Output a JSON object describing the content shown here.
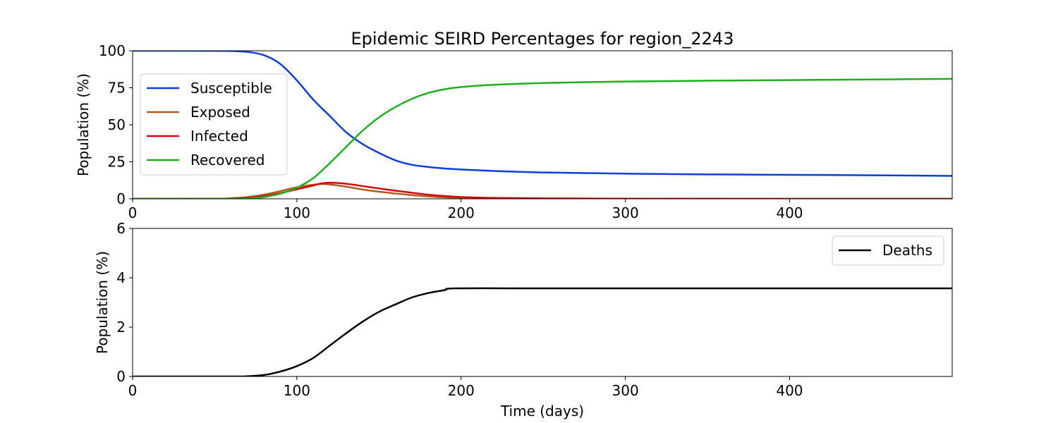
{
  "chart_data": [
    {
      "type": "line",
      "title": "Epidemic SEIRD Percentages for region_2243",
      "xlabel": "",
      "ylabel": "Population (%)",
      "xlim": [
        0,
        499
      ],
      "ylim": [
        0,
        100
      ],
      "x_ticks": [
        0,
        100,
        200,
        300,
        400
      ],
      "y_ticks": [
        0,
        25,
        50,
        75,
        100
      ],
      "legend_position": "upper-left",
      "series": [
        {
          "name": "Susceptible",
          "color": "#0b3fd6",
          "points": [
            [
              0,
              100
            ],
            [
              50,
              99.95
            ],
            [
              60,
              99.8
            ],
            [
              70,
              99.2
            ],
            [
              80,
              97
            ],
            [
              90,
              91
            ],
            [
              100,
              80
            ],
            [
              110,
              67
            ],
            [
              120,
              56
            ],
            [
              130,
              45
            ],
            [
              140,
              37
            ],
            [
              150,
              31
            ],
            [
              160,
              26
            ],
            [
              170,
              23
            ],
            [
              180,
              21.5
            ],
            [
              190,
              20.5
            ],
            [
              200,
              19.8
            ],
            [
              220,
              18.8
            ],
            [
              250,
              17.8
            ],
            [
              300,
              17
            ],
            [
              350,
              16.5
            ],
            [
              400,
              16.2
            ],
            [
              450,
              15.9
            ],
            [
              499,
              15.5
            ]
          ]
        },
        {
          "name": "Exposed",
          "color": "#b05a23",
          "points": [
            [
              0,
              0
            ],
            [
              50,
              0.1
            ],
            [
              60,
              0.4
            ],
            [
              70,
              1.2
            ],
            [
              80,
              2.8
            ],
            [
              90,
              5.2
            ],
            [
              100,
              7.8
            ],
            [
              110,
              9.5
            ],
            [
              115,
              10
            ],
            [
              120,
              9.7
            ],
            [
              130,
              8.2
            ],
            [
              140,
              6.3
            ],
            [
              150,
              4.8
            ],
            [
              160,
              3.6
            ],
            [
              170,
              2.5
            ],
            [
              180,
              1.6
            ],
            [
              190,
              1
            ],
            [
              200,
              0.6
            ],
            [
              220,
              0.3
            ],
            [
              250,
              0.15
            ],
            [
              300,
              0.05
            ],
            [
              400,
              0.02
            ],
            [
              499,
              0.01
            ]
          ]
        },
        {
          "name": "Infected",
          "color": "#d10a0a",
          "points": [
            [
              0,
              0
            ],
            [
              50,
              0.05
            ],
            [
              60,
              0.2
            ],
            [
              70,
              0.7
            ],
            [
              80,
              1.8
            ],
            [
              90,
              3.8
            ],
            [
              100,
              6.4
            ],
            [
              110,
              9
            ],
            [
              115,
              10.4
            ],
            [
              120,
              10.9
            ],
            [
              130,
              10.2
            ],
            [
              140,
              8.6
            ],
            [
              150,
              7
            ],
            [
              160,
              5.5
            ],
            [
              170,
              4.1
            ],
            [
              180,
              2.8
            ],
            [
              190,
              1.9
            ],
            [
              200,
              1.2
            ],
            [
              220,
              0.6
            ],
            [
              250,
              0.3
            ],
            [
              300,
              0.1
            ],
            [
              400,
              0.03
            ],
            [
              499,
              0.02
            ]
          ]
        },
        {
          "name": "Recovered",
          "color": "#1eae1e",
          "points": [
            [
              0,
              0
            ],
            [
              60,
              0.05
            ],
            [
              70,
              0.3
            ],
            [
              80,
              1.2
            ],
            [
              90,
              3.5
            ],
            [
              100,
              7.5
            ],
            [
              110,
              14
            ],
            [
              120,
              24
            ],
            [
              130,
              35
            ],
            [
              140,
              46
            ],
            [
              150,
              55
            ],
            [
              160,
              62
            ],
            [
              170,
              67.5
            ],
            [
              180,
              71.5
            ],
            [
              190,
              74
            ],
            [
              200,
              75.5
            ],
            [
              220,
              77
            ],
            [
              250,
              78.2
            ],
            [
              300,
              79.2
            ],
            [
              350,
              79.8
            ],
            [
              400,
              80.2
            ],
            [
              450,
              80.6
            ],
            [
              499,
              81
            ]
          ]
        }
      ]
    },
    {
      "type": "line",
      "title": "",
      "xlabel": "Time (days)",
      "ylabel": "Population (%)",
      "xlim": [
        0,
        499
      ],
      "ylim": [
        0,
        6
      ],
      "x_ticks": [
        0,
        100,
        200,
        300,
        400
      ],
      "y_ticks": [
        0,
        2,
        4,
        6
      ],
      "legend_position": "upper-right",
      "series": [
        {
          "name": "Deaths",
          "color": "#000000",
          "points": [
            [
              0,
              0
            ],
            [
              60,
              0
            ],
            [
              70,
              0.01
            ],
            [
              80,
              0.06
            ],
            [
              90,
              0.2
            ],
            [
              100,
              0.42
            ],
            [
              110,
              0.75
            ],
            [
              120,
              1.25
            ],
            [
              130,
              1.75
            ],
            [
              140,
              2.22
            ],
            [
              150,
              2.62
            ],
            [
              160,
              2.92
            ],
            [
              170,
              3.2
            ],
            [
              180,
              3.38
            ],
            [
              190,
              3.5
            ],
            [
              197,
              3.57
            ],
            [
              250,
              3.57
            ],
            [
              300,
              3.57
            ],
            [
              400,
              3.57
            ],
            [
              499,
              3.57
            ]
          ]
        }
      ]
    }
  ]
}
